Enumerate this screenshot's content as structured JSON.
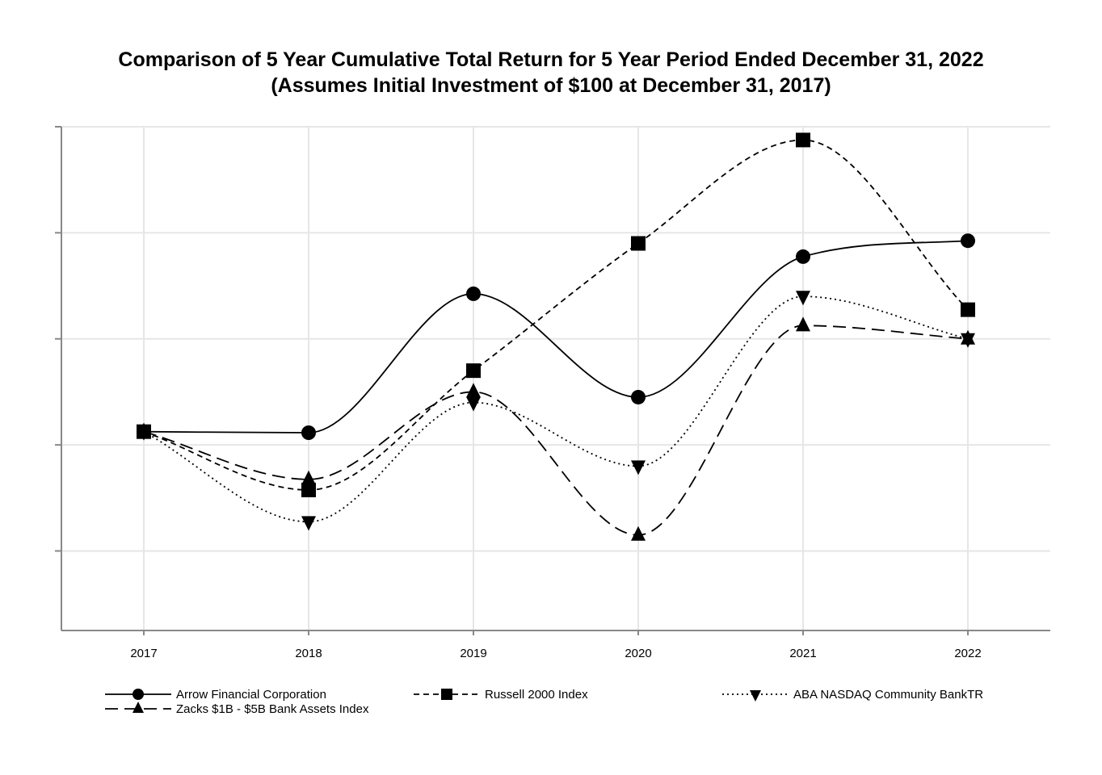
{
  "chart_data": {
    "type": "line",
    "title": "Comparison of 5 Year Cumulative Total Return for 5 Year Period Ended December 31, 2022",
    "subtitle": "(Assumes Initial Investment of $100 at December 31, 2017)",
    "xlabel": "",
    "ylabel": "",
    "categories": [
      "2017",
      "2018",
      "2019",
      "2020",
      "2021",
      "2022"
    ],
    "ylim": [
      62.5,
      157.5
    ],
    "y_ticks": [
      77.5,
      97.5,
      117.5,
      137.5,
      157.5
    ],
    "grid": true,
    "curve": "smooth",
    "legend_position": "bottom",
    "series": [
      {
        "name": "Arrow Financial Corporation",
        "marker": "circle",
        "dash": "solid",
        "values": [
          100.0,
          99.8,
          126.0,
          106.5,
          133.0,
          136.0
        ]
      },
      {
        "name": "Russell 2000 Index",
        "marker": "square",
        "dash": "short-dash",
        "values": [
          100.0,
          89.0,
          111.5,
          135.5,
          155.0,
          123.0
        ]
      },
      {
        "name": "ABA NASDAQ Community BankTR",
        "marker": "triangle-down",
        "dash": "dotted",
        "values": [
          100.0,
          83.0,
          105.5,
          93.5,
          125.5,
          117.5
        ]
      },
      {
        "name": "Zacks $1B - $5B Bank Assets Index",
        "marker": "triangle-up",
        "dash": "long-dash",
        "values": [
          100.0,
          91.0,
          107.5,
          80.5,
          120.0,
          117.5
        ]
      }
    ]
  }
}
